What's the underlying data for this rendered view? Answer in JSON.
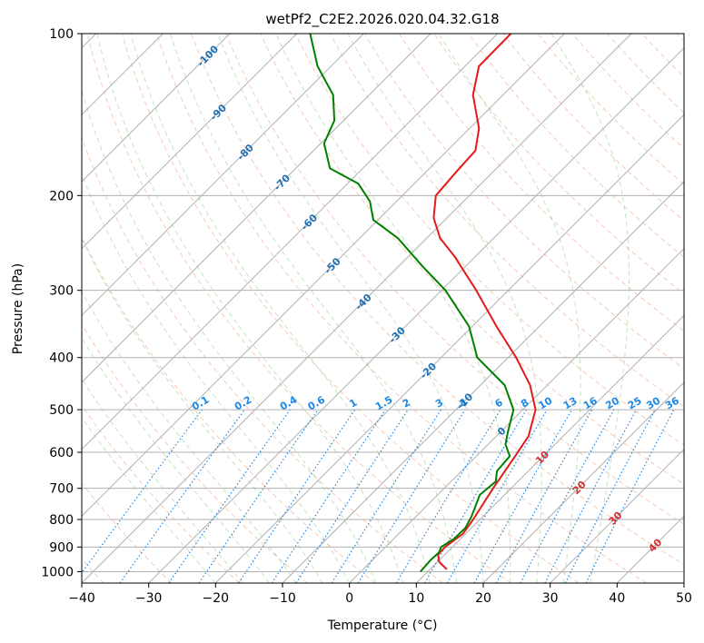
{
  "chart_data": {
    "type": "line",
    "title": "wetPf2_C2E2.2026.020.04.32.G18",
    "xlabel": "Temperature (°C)",
    "ylabel": "Pressure (hPa)",
    "xlim": [
      -40,
      50
    ],
    "ylim": [
      1050,
      100
    ],
    "x_ticks": [
      -40,
      -30,
      -20,
      -10,
      0,
      10,
      20,
      30,
      40,
      50
    ],
    "y_ticks": [
      1000,
      900,
      800,
      700,
      600,
      500,
      400,
      300,
      200,
      100
    ],
    "isotherm_labels": [
      {
        "t": -100,
        "p": 110,
        "text": "-100"
      },
      {
        "t": -90,
        "p": 140,
        "text": "-90"
      },
      {
        "t": -80,
        "p": 166,
        "text": "-80"
      },
      {
        "t": -70,
        "p": 189,
        "text": "-70"
      },
      {
        "t": -60,
        "p": 224,
        "text": "-60"
      },
      {
        "t": -50,
        "p": 270,
        "text": "-50"
      },
      {
        "t": -40,
        "p": 315,
        "text": "-40"
      },
      {
        "t": -30,
        "p": 363,
        "text": "-30"
      },
      {
        "t": -20,
        "p": 423,
        "text": "-20"
      },
      {
        "t": -10,
        "p": 482,
        "text": "-10"
      },
      {
        "t": 0,
        "p": 548,
        "text": "0"
      },
      {
        "t": 10,
        "p": 613,
        "text": "10"
      },
      {
        "t": 20,
        "p": 697,
        "text": "20"
      },
      {
        "t": 30,
        "p": 795,
        "text": "30"
      },
      {
        "t": 40,
        "p": 893,
        "text": "40"
      }
    ],
    "mixing_ratio_labels": [
      "0.1",
      "0.2",
      "0.4",
      "0.6",
      "1",
      "1.5",
      "2",
      "3",
      "4",
      "6",
      "8",
      "10",
      "13",
      "16",
      "20",
      "25",
      "30",
      "36"
    ],
    "series": [
      {
        "name": "temperature",
        "color": "#e41a1c",
        "points": [
          {
            "p": 990,
            "t": 12.5
          },
          {
            "p": 960,
            "t": 10.3
          },
          {
            "p": 930,
            "t": 9.0
          },
          {
            "p": 900,
            "t": 8.9
          },
          {
            "p": 850,
            "t": 9.6
          },
          {
            "p": 800,
            "t": 9.0
          },
          {
            "p": 700,
            "t": 7.3
          },
          {
            "p": 610,
            "t": 5.8
          },
          {
            "p": 560,
            "t": 4.8
          },
          {
            "p": 500,
            "t": 1.9
          },
          {
            "p": 450,
            "t": -2.6
          },
          {
            "p": 400,
            "t": -8.8
          },
          {
            "p": 350,
            "t": -16.4
          },
          {
            "p": 300,
            "t": -24.8
          },
          {
            "p": 260,
            "t": -33.0
          },
          {
            "p": 240,
            "t": -38.0
          },
          {
            "p": 220,
            "t": -42.0
          },
          {
            "p": 200,
            "t": -45.0
          },
          {
            "p": 180,
            "t": -45.5
          },
          {
            "p": 165,
            "t": -45.8
          },
          {
            "p": 150,
            "t": -48.6
          },
          {
            "p": 130,
            "t": -54.5
          },
          {
            "p": 115,
            "t": -57.9
          },
          {
            "p": 100,
            "t": -58.0
          }
        ]
      },
      {
        "name": "dewpoint",
        "color": "#008000",
        "points": [
          {
            "p": 1000,
            "t": 8.9
          },
          {
            "p": 950,
            "t": 8.7
          },
          {
            "p": 920,
            "t": 8.8
          },
          {
            "p": 900,
            "t": 8.3
          },
          {
            "p": 870,
            "t": 9.0
          },
          {
            "p": 830,
            "t": 9.1
          },
          {
            "p": 790,
            "t": 8.3
          },
          {
            "p": 720,
            "t": 6.3
          },
          {
            "p": 680,
            "t": 6.7
          },
          {
            "p": 650,
            "t": 5.3
          },
          {
            "p": 610,
            "t": 5.0
          },
          {
            "p": 580,
            "t": 2.6
          },
          {
            "p": 550,
            "t": 1.1
          },
          {
            "p": 500,
            "t": -1.4
          },
          {
            "p": 450,
            "t": -6.4
          },
          {
            "p": 400,
            "t": -14.6
          },
          {
            "p": 350,
            "t": -20.5
          },
          {
            "p": 300,
            "t": -29.4
          },
          {
            "p": 270,
            "t": -36.6
          },
          {
            "p": 240,
            "t": -44.3
          },
          {
            "p": 222,
            "t": -50.7
          },
          {
            "p": 205,
            "t": -54.0
          },
          {
            "p": 190,
            "t": -58.4
          },
          {
            "p": 178,
            "t": -64.9
          },
          {
            "p": 160,
            "t": -69.5
          },
          {
            "p": 145,
            "t": -71.4
          },
          {
            "p": 130,
            "t": -75.4
          },
          {
            "p": 115,
            "t": -82.0
          },
          {
            "p": 100,
            "t": -88.0
          }
        ]
      }
    ]
  }
}
